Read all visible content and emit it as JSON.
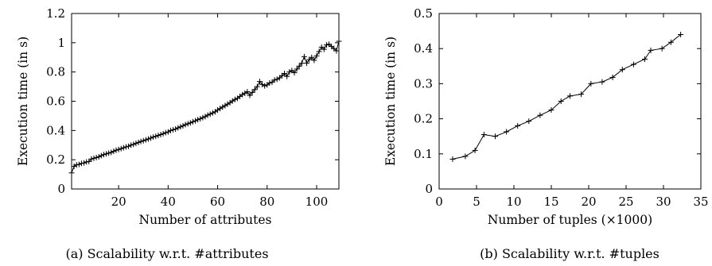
{
  "chart_data": [
    {
      "id": "a",
      "type": "line",
      "caption": "(a) Scalability w.r.t. #attributes",
      "xlabel": "Number of attributes",
      "ylabel": "Execution time (in s)",
      "xlim": [
        1,
        109
      ],
      "ylim": [
        0,
        1.2
      ],
      "xticks": [
        20,
        40,
        60,
        80,
        100
      ],
      "xtick_labels": [
        "20",
        "40",
        "60",
        "80",
        "100"
      ],
      "yticks": [
        0,
        0.2,
        0.4,
        0.6,
        0.8,
        1,
        1.2
      ],
      "ytick_labels": [
        "0",
        "0.2",
        "0.4",
        "0.6",
        "0.8",
        "1",
        "1.2"
      ],
      "grid": false,
      "marker": "+",
      "series": [
        {
          "x": [
            1,
            2,
            3,
            4,
            5,
            6,
            7,
            8,
            9,
            10,
            11,
            12,
            13,
            14,
            15,
            16,
            17,
            18,
            19,
            20,
            21,
            22,
            23,
            24,
            25,
            26,
            27,
            28,
            29,
            30,
            31,
            32,
            33,
            34,
            35,
            36,
            37,
            38,
            39,
            40,
            41,
            42,
            43,
            44,
            45,
            46,
            47,
            48,
            49,
            50,
            51,
            52,
            53,
            54,
            55,
            56,
            57,
            58,
            59,
            60,
            61,
            62,
            63,
            64,
            65,
            66,
            67,
            68,
            69,
            70,
            71,
            72,
            73,
            74,
            75,
            76,
            77,
            78,
            79,
            80,
            81,
            82,
            83,
            84,
            85,
            86,
            87,
            88,
            89,
            90,
            91,
            92,
            93,
            94,
            95,
            96,
            97,
            98,
            99,
            100,
            101,
            102,
            103,
            104,
            105,
            106,
            107,
            108,
            109
          ],
          "y": [
            0.11,
            0.155,
            0.165,
            0.168,
            0.175,
            0.178,
            0.185,
            0.188,
            0.205,
            0.21,
            0.215,
            0.22,
            0.228,
            0.235,
            0.24,
            0.245,
            0.25,
            0.258,
            0.265,
            0.27,
            0.276,
            0.282,
            0.288,
            0.292,
            0.3,
            0.305,
            0.312,
            0.318,
            0.325,
            0.33,
            0.336,
            0.342,
            0.348,
            0.355,
            0.36,
            0.366,
            0.372,
            0.378,
            0.385,
            0.39,
            0.4,
            0.405,
            0.41,
            0.418,
            0.425,
            0.432,
            0.44,
            0.446,
            0.452,
            0.46,
            0.466,
            0.474,
            0.48,
            0.488,
            0.495,
            0.505,
            0.512,
            0.52,
            0.528,
            0.54,
            0.55,
            0.56,
            0.57,
            0.58,
            0.59,
            0.602,
            0.612,
            0.62,
            0.633,
            0.645,
            0.655,
            0.665,
            0.64,
            0.66,
            0.68,
            0.7,
            0.735,
            0.715,
            0.705,
            0.712,
            0.725,
            0.73,
            0.745,
            0.75,
            0.76,
            0.775,
            0.79,
            0.77,
            0.8,
            0.81,
            0.795,
            0.82,
            0.84,
            0.86,
            0.905,
            0.86,
            0.885,
            0.9,
            0.88,
            0.91,
            0.94,
            0.97,
            0.955,
            0.985,
            0.99,
            0.975,
            0.96,
            0.945,
            1.01
          ]
        }
      ]
    },
    {
      "id": "b",
      "type": "line",
      "caption": "(b) Scalability w.r.t. #tuples",
      "xlabel": "Number of tuples (×1000)",
      "ylabel": "Execution time (in s)",
      "xlim": [
        0,
        35
      ],
      "ylim": [
        0,
        0.5
      ],
      "xticks": [
        0,
        5,
        10,
        15,
        20,
        25,
        30,
        35
      ],
      "xtick_labels": [
        "0",
        "5",
        "10",
        "15",
        "20",
        "25",
        "30",
        "35"
      ],
      "yticks": [
        0,
        0.1,
        0.2,
        0.3,
        0.4,
        0.5
      ],
      "ytick_labels": [
        "0",
        "0.1",
        "0.2",
        "0.3",
        "0.4",
        "0.5"
      ],
      "grid": false,
      "marker": "+",
      "series": [
        {
          "x": [
            1.8,
            3.5,
            4.8,
            6.0,
            7.5,
            9.0,
            10.5,
            12.0,
            13.5,
            15.0,
            16.3,
            17.5,
            19.0,
            20.3,
            21.8,
            23.2,
            24.5,
            26.0,
            27.5,
            28.3,
            29.8,
            31.0,
            32.3
          ],
          "y": [
            0.085,
            0.093,
            0.11,
            0.155,
            0.15,
            0.163,
            0.18,
            0.193,
            0.21,
            0.225,
            0.25,
            0.265,
            0.27,
            0.3,
            0.305,
            0.318,
            0.34,
            0.355,
            0.37,
            0.395,
            0.4,
            0.418,
            0.44
          ]
        }
      ]
    }
  ]
}
